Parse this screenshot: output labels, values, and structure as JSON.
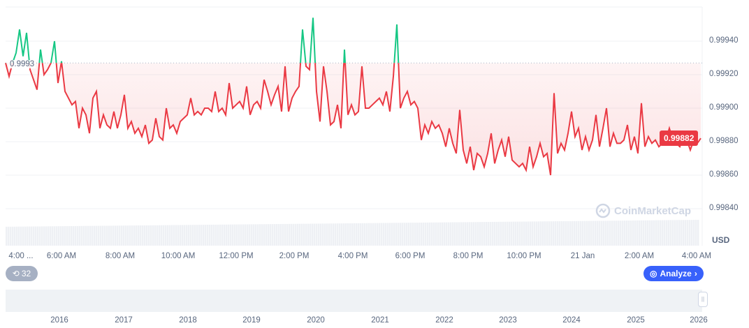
{
  "chart_data": {
    "type": "line",
    "title": "",
    "currency": "USD",
    "baseline": 0.99927,
    "baseline_label": "0.9993",
    "current_price_label": "0.99882",
    "ylim": [
      0.9983,
      0.9996
    ],
    "y_ticks": [
      "0.99940",
      "0.99920",
      "0.99900",
      "0.99880",
      "0.99860",
      "0.99840"
    ],
    "y_tick_values": [
      0.9994,
      0.9992,
      0.999,
      0.9988,
      0.9986,
      0.9984
    ],
    "x_tick_labels": [
      "4:00 ...",
      "6:00 AM",
      "8:00 AM",
      "10:00 AM",
      "12:00 PM",
      "2:00 PM",
      "4:00 PM",
      "6:00 PM",
      "8:00 PM",
      "10:00 PM",
      "21 Jan",
      "2:00 AM",
      "4:00 AM"
    ],
    "navigator_years": [
      "2016",
      "2017",
      "2018",
      "2019",
      "2020",
      "2021",
      "2022",
      "2023",
      "2024",
      "2025",
      "2026"
    ],
    "colors": {
      "up": "#16c784",
      "down": "#ea3943",
      "accent": "#3861fb"
    },
    "values": [
      0.99927,
      0.99919,
      0.99927,
      0.99933,
      0.99947,
      0.99931,
      0.99945,
      0.99923,
      0.99917,
      0.99911,
      0.99935,
      0.9992,
      0.99923,
      0.99927,
      0.9994,
      0.99915,
      0.99928,
      0.9991,
      0.99906,
      0.99902,
      0.99904,
      0.99888,
      0.999,
      0.99896,
      0.99885,
      0.99906,
      0.9991,
      0.99888,
      0.99896,
      0.9989,
      0.99888,
      0.99898,
      0.99888,
      0.99896,
      0.99908,
      0.99888,
      0.99892,
      0.99885,
      0.99888,
      0.99883,
      0.9989,
      0.99879,
      0.99881,
      0.99894,
      0.99883,
      0.99881,
      0.999,
      0.99888,
      0.9989,
      0.99885,
      0.99892,
      0.99894,
      0.99896,
      0.99906,
      0.99896,
      0.99898,
      0.99896,
      0.999,
      0.999,
      0.99898,
      0.9991,
      0.99898,
      0.999,
      0.99896,
      0.99915,
      0.999,
      0.99902,
      0.99904,
      0.999,
      0.99913,
      0.99896,
      0.99902,
      0.99904,
      0.999,
      0.99917,
      0.9991,
      0.99902,
      0.99908,
      0.99913,
      0.99898,
      0.99925,
      0.99898,
      0.99906,
      0.9991,
      0.99913,
      0.99947,
      0.99925,
      0.99923,
      0.99954,
      0.9991,
      0.99892,
      0.99925,
      0.9991,
      0.9989,
      0.99892,
      0.99902,
      0.99888,
      0.99935,
      0.99896,
      0.99902,
      0.99896,
      0.99898,
      0.99925,
      0.999,
      0.999,
      0.99902,
      0.99904,
      0.99906,
      0.99902,
      0.9991,
      0.99898,
      0.99919,
      0.9995,
      0.999,
      0.99906,
      0.9991,
      0.99902,
      0.99904,
      0.999,
      0.99881,
      0.9989,
      0.99885,
      0.99892,
      0.99888,
      0.9989,
      0.99885,
      0.99877,
      0.99888,
      0.99879,
      0.99873,
      0.99899,
      0.99875,
      0.99867,
      0.99877,
      0.99863,
      0.99873,
      0.99871,
      0.99865,
      0.99873,
      0.99885,
      0.99867,
      0.99875,
      0.99881,
      0.99871,
      0.99883,
      0.99869,
      0.99867,
      0.99865,
      0.99867,
      0.99863,
      0.99877,
      0.99865,
      0.99871,
      0.99879,
      0.99871,
      0.99873,
      0.9986,
      0.99909,
      0.99873,
      0.99879,
      0.99875,
      0.99885,
      0.99898,
      0.99883,
      0.99888,
      0.99875,
      0.99883,
      0.99875,
      0.99881,
      0.99896,
      0.99877,
      0.99888,
      0.999,
      0.99877,
      0.99885,
      0.99879,
      0.99879,
      0.99881,
      0.9989,
      0.99875,
      0.99883,
      0.99873,
      0.99903,
      0.99877,
      0.99883,
      0.99879,
      0.99881,
      0.99877,
      0.99879,
      0.99881,
      0.99888,
      0.99881,
      0.99879,
      0.99877,
      0.99883,
      0.99881,
      0.99875,
      0.99881,
      0.99879,
      0.99882
    ]
  },
  "watermark": "CoinMarketCap",
  "history_count": "32",
  "analyze_label": "Analyze"
}
